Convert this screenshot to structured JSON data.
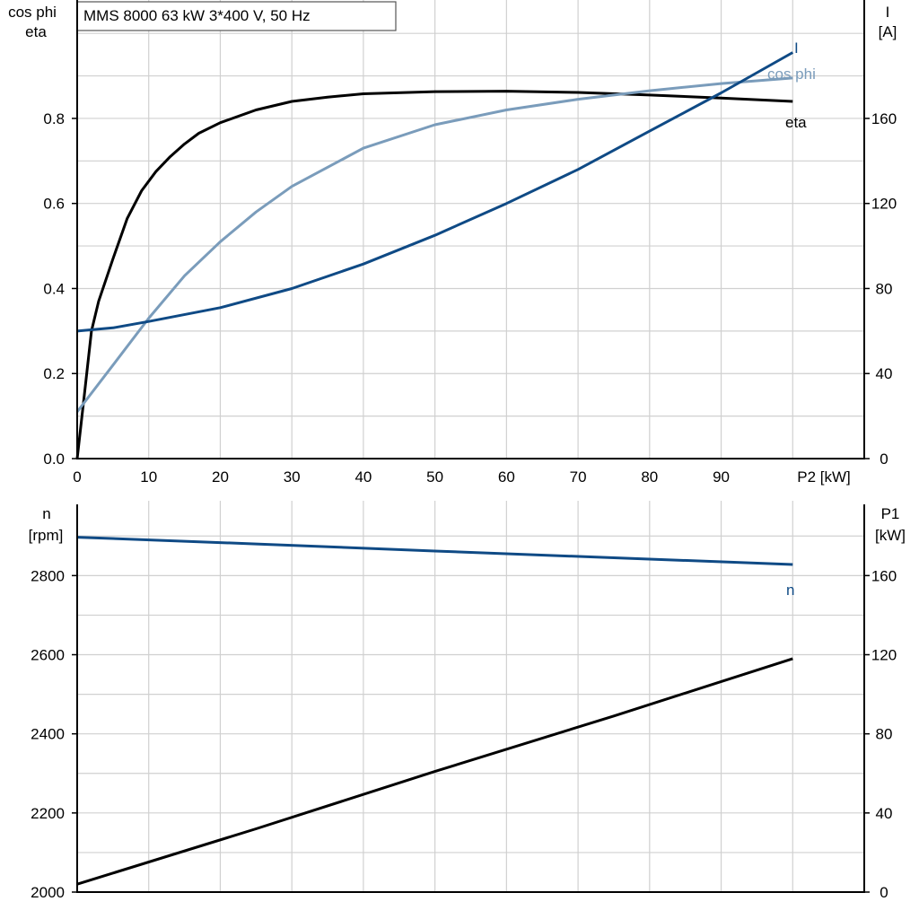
{
  "header": {
    "title": "MMS 8000   63 kW   3*400 V, 50 Hz"
  },
  "colors": {
    "eta": "#000000",
    "cosphi": "#7a9cbb",
    "current": "#0f4a85",
    "speed": "#0f4a85",
    "p1": "#000000"
  },
  "chart_data": [
    {
      "type": "line",
      "xlabel": "P2 [kW]",
      "x_ticks": [
        "0",
        "10",
        "20",
        "30",
        "40",
        "50",
        "60",
        "70",
        "80",
        "90"
      ],
      "xlim": [
        0,
        110
      ],
      "y_left_label": [
        "cos phi",
        "eta"
      ],
      "y_left_ticks": [
        "0.0",
        "0.2",
        "0.4",
        "0.6",
        "0.8"
      ],
      "y_left_lim": [
        0,
        1.07
      ],
      "y_right_label": [
        "I",
        "[A]"
      ],
      "y_right_ticks": [
        "0",
        "40",
        "80",
        "120",
        "160"
      ],
      "y_right_lim": [
        0,
        214
      ],
      "grid": true,
      "series": [
        {
          "name": "eta",
          "axis": "left",
          "color": "#000000",
          "x": [
            0,
            1,
            2,
            3,
            5,
            7,
            9,
            11,
            13,
            15,
            17,
            20,
            25,
            30,
            35,
            40,
            50,
            60,
            70,
            80,
            90,
            100
          ],
          "y": [
            0.0,
            0.15,
            0.3,
            0.37,
            0.47,
            0.565,
            0.63,
            0.675,
            0.71,
            0.74,
            0.765,
            0.79,
            0.82,
            0.84,
            0.85,
            0.858,
            0.863,
            0.864,
            0.861,
            0.855,
            0.848,
            0.84
          ]
        },
        {
          "name": "cos phi",
          "axis": "left",
          "color": "#7a9cbb",
          "x": [
            0,
            5,
            10,
            15,
            20,
            25,
            30,
            40,
            50,
            60,
            70,
            80,
            90,
            100
          ],
          "y": [
            0.11,
            0.22,
            0.33,
            0.43,
            0.51,
            0.58,
            0.64,
            0.73,
            0.785,
            0.82,
            0.845,
            0.865,
            0.882,
            0.895
          ]
        },
        {
          "name": "I",
          "axis": "right",
          "color": "#0f4a85",
          "x": [
            0,
            5,
            10,
            20,
            30,
            40,
            50,
            60,
            70,
            80,
            90,
            100
          ],
          "y": [
            60,
            61.5,
            64.5,
            71,
            80,
            91.5,
            105,
            120,
            136,
            154,
            172,
            191
          ]
        }
      ]
    },
    {
      "type": "line",
      "xlabel": "",
      "x_ticks": [],
      "xlim": [
        0,
        110
      ],
      "y_left_label": [
        "n",
        "[rpm]"
      ],
      "y_left_ticks": [
        "2000",
        "2200",
        "2400",
        "2600",
        "2800"
      ],
      "y_left_lim": [
        2000,
        2980
      ],
      "y_right_label": [
        "P1",
        "[kW]"
      ],
      "y_right_ticks": [
        "0",
        "40",
        "80",
        "120",
        "160"
      ],
      "y_right_lim": [
        0,
        196
      ],
      "grid": true,
      "series": [
        {
          "name": "n",
          "axis": "left",
          "color": "#0f4a85",
          "x": [
            0,
            25,
            50,
            75,
            100
          ],
          "y": [
            2897,
            2880,
            2862,
            2845,
            2828
          ]
        },
        {
          "name": "",
          "axis": "right",
          "color": "#000000",
          "x": [
            0,
            25,
            50,
            75,
            100
          ],
          "y": [
            4,
            32,
            61,
            89,
            118
          ]
        }
      ]
    }
  ]
}
